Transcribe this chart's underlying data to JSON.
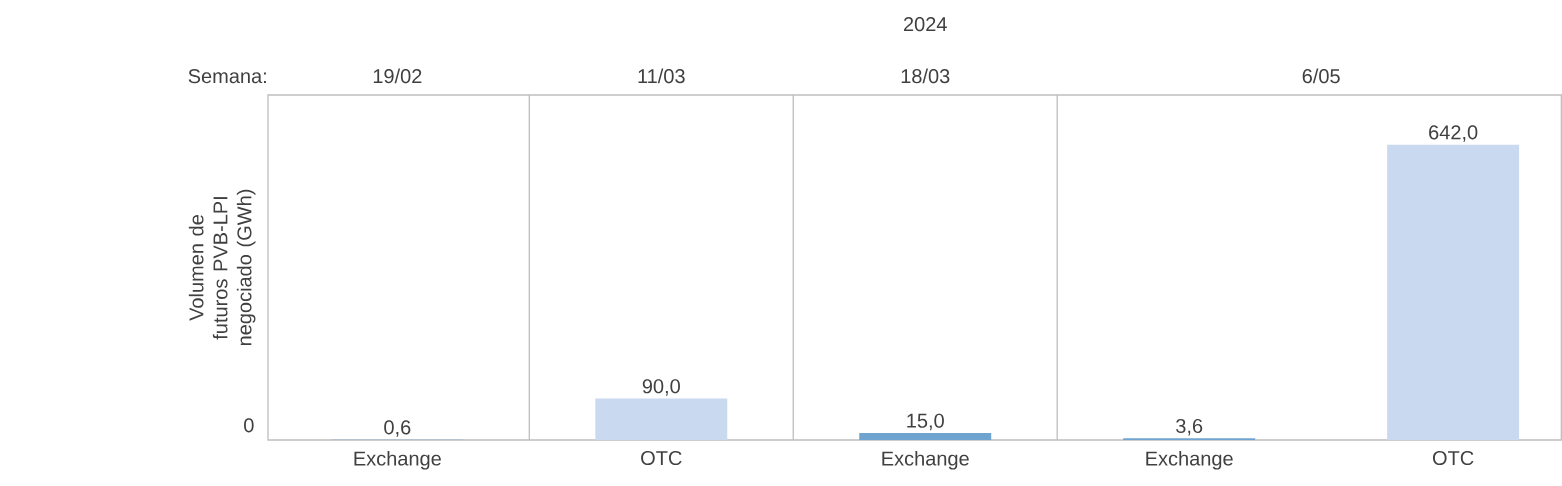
{
  "chart_data": {
    "type": "bar",
    "ylabel": "Volumen de futuros PVB-LPI negociado (GWh)",
    "categories": [
      "Exchange",
      "OTC",
      "Exchange",
      "Exchange",
      "OTC"
    ],
    "values": [
      0.6,
      90.0,
      15.0,
      3.6,
      642.0
    ],
    "colors": [
      "#6fa3d0",
      "#c9d9ef",
      "#6fa3d0",
      "#6fa3d0",
      "#c9d9ef"
    ],
    "value_labels": [
      "0,6",
      "90,0",
      "15,0",
      "3,6",
      "642,0"
    ],
    "ylim": [
      0,
      750
    ],
    "annotations": [
      "2024",
      "Semana:",
      "19/02",
      "11/03",
      "18/03",
      "6/05",
      "0"
    ]
  }
}
